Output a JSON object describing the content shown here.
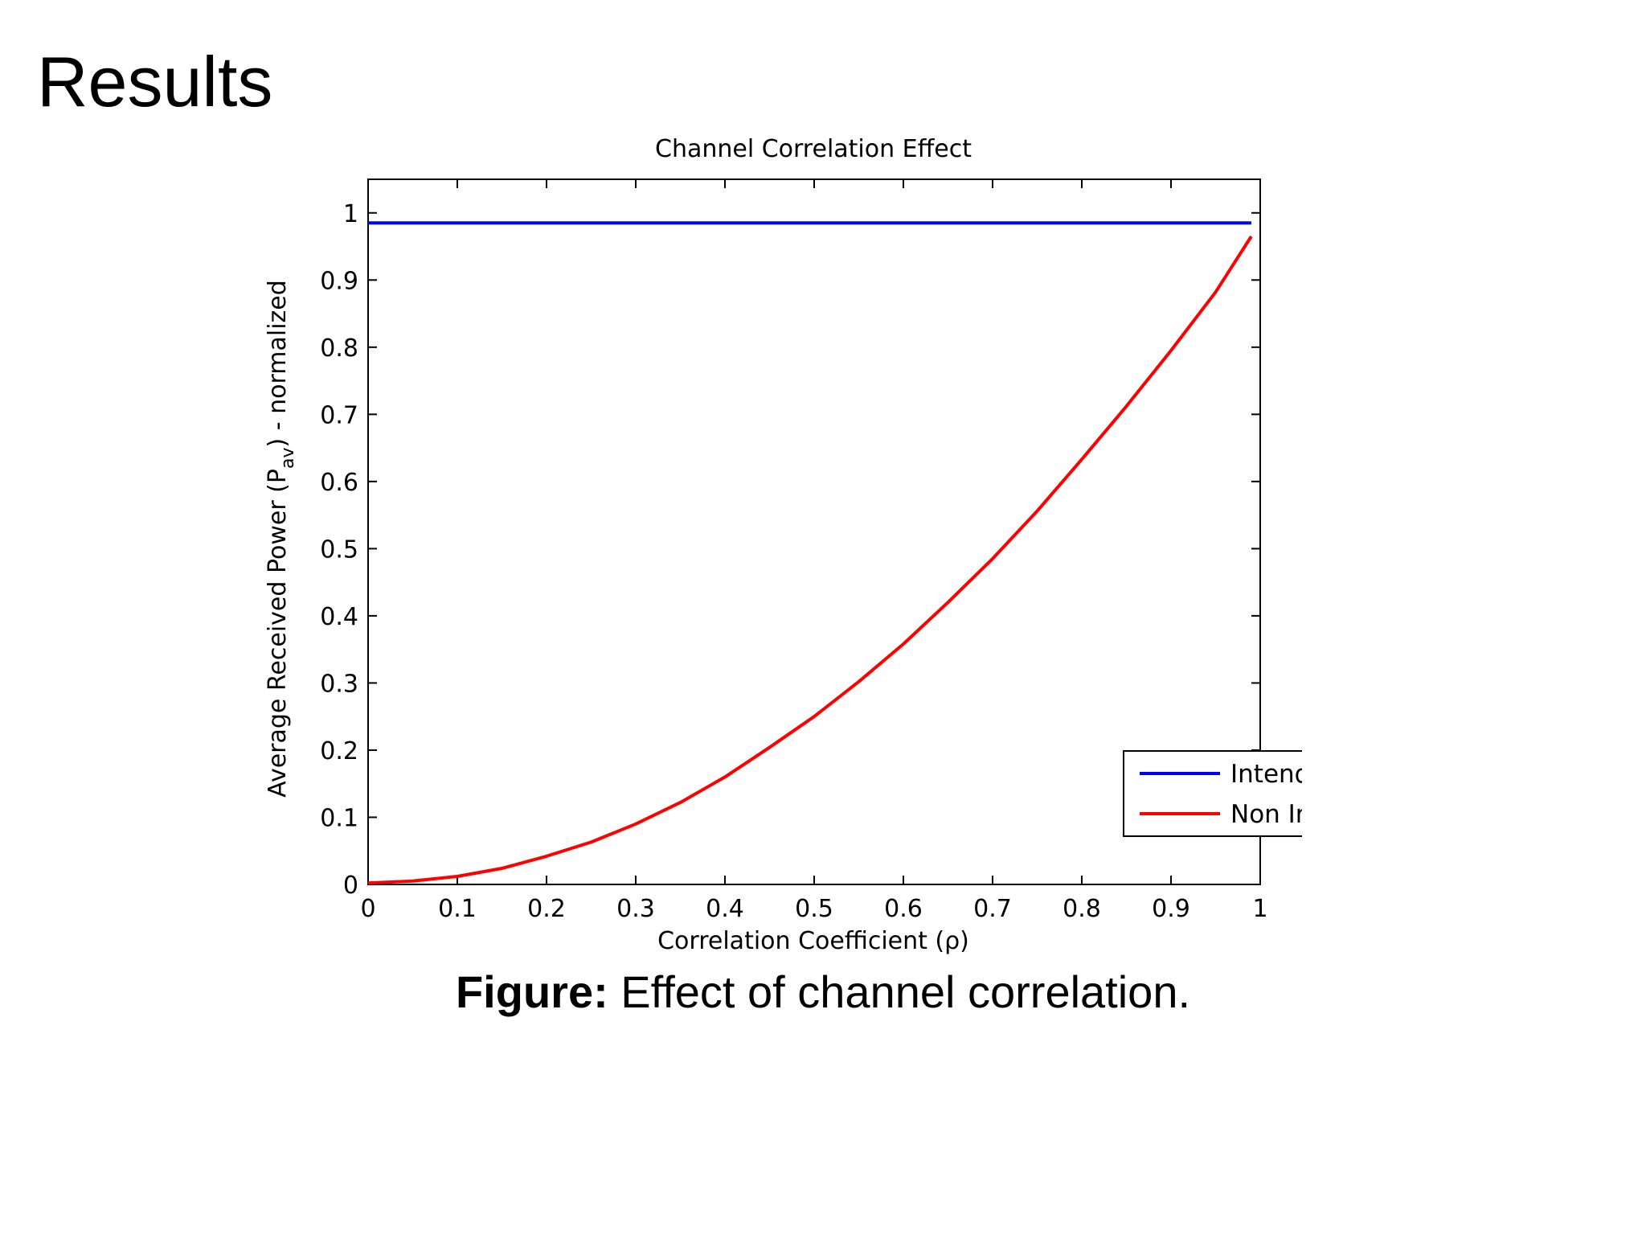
{
  "slide": {
    "title": "Results",
    "caption_label": "Figure:",
    "caption_text": " Effect of channel correlation."
  },
  "chart_data": {
    "type": "line",
    "title": "Channel Correlation Effect",
    "xlabel": "Correlation Coefficient (ρ)",
    "ylabel_main": "Average Received Power (P",
    "ylabel_sub": "av",
    "ylabel_tail": ") - normalized",
    "xlim": [
      0,
      1
    ],
    "ylim": [
      0,
      1.05
    ],
    "xticks": [
      0,
      0.1,
      0.2,
      0.3,
      0.4,
      0.5,
      0.6,
      0.7,
      0.8,
      0.9,
      1
    ],
    "xtick_labels": [
      "0",
      "0.1",
      "0.2",
      "0.3",
      "0.4",
      "0.5",
      "0.6",
      "0.7",
      "0.8",
      "0.9",
      "1"
    ],
    "yticks": [
      0,
      0.1,
      0.2,
      0.3,
      0.4,
      0.5,
      0.6,
      0.7,
      0.8,
      0.9,
      1
    ],
    "ytick_labels": [
      "0",
      "0.1",
      "0.2",
      "0.3",
      "0.4",
      "0.5",
      "0.6",
      "0.7",
      "0.8",
      "0.9",
      "1"
    ],
    "grid": false,
    "legend_position": "lower-right",
    "series": [
      {
        "name": "Intended User",
        "color": "#0000ff",
        "x": [
          0,
          0.99
        ],
        "y": [
          0.985,
          0.985
        ]
      },
      {
        "name": "Non Intended User",
        "color": "#ff0000",
        "x": [
          0,
          0.05,
          0.1,
          0.15,
          0.2,
          0.25,
          0.3,
          0.35,
          0.4,
          0.45,
          0.5,
          0.55,
          0.6,
          0.65,
          0.7,
          0.75,
          0.8,
          0.85,
          0.9,
          0.95,
          0.99
        ],
        "y": [
          0.002,
          0.005,
          0.012,
          0.024,
          0.042,
          0.063,
          0.09,
          0.122,
          0.16,
          0.204,
          0.25,
          0.302,
          0.358,
          0.42,
          0.485,
          0.556,
          0.633,
          0.712,
          0.795,
          0.882,
          0.965
        ]
      }
    ]
  }
}
